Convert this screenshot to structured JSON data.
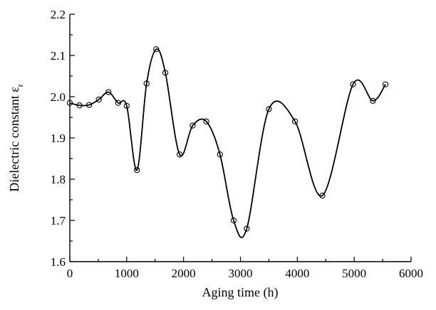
{
  "chart_data": {
    "type": "line",
    "xlabel": "Aging time (h)",
    "ylabel": "Dielectric constant ε",
    "ylabel_subscript": "r",
    "xlim": [
      0,
      6000
    ],
    "ylim": [
      1.6,
      2.2
    ],
    "x_ticks": [
      0,
      1000,
      2000,
      3000,
      4000,
      5000,
      6000
    ],
    "x_tick_labels": [
      "0",
      "1000",
      "2000",
      "3000",
      "4000",
      "5000",
      "6000"
    ],
    "y_ticks": [
      1.6,
      1.7,
      1.8,
      1.9,
      2.0,
      2.1,
      2.2
    ],
    "y_tick_labels": [
      "1.6",
      "1.7",
      "1.8",
      "1.9",
      "2.0",
      "2.1",
      "2.2"
    ],
    "grid": false,
    "series": [
      {
        "marker": "open-circle",
        "line": "smooth",
        "points": [
          {
            "x": 0,
            "y": 1.985
          },
          {
            "x": 170,
            "y": 1.979
          },
          {
            "x": 340,
            "y": 1.98
          },
          {
            "x": 510,
            "y": 1.993
          },
          {
            "x": 680,
            "y": 2.011
          },
          {
            "x": 850,
            "y": 1.985
          },
          {
            "x": 1000,
            "y": 1.978
          },
          {
            "x": 1180,
            "y": 1.822
          },
          {
            "x": 1350,
            "y": 2.032
          },
          {
            "x": 1520,
            "y": 2.115
          },
          {
            "x": 1680,
            "y": 2.058
          },
          {
            "x": 1930,
            "y": 1.86
          },
          {
            "x": 2160,
            "y": 1.93
          },
          {
            "x": 2400,
            "y": 1.94
          },
          {
            "x": 2640,
            "y": 1.86
          },
          {
            "x": 2880,
            "y": 1.7
          },
          {
            "x": 3110,
            "y": 1.68
          },
          {
            "x": 3500,
            "y": 1.97
          },
          {
            "x": 3960,
            "y": 1.94
          },
          {
            "x": 4440,
            "y": 1.76
          },
          {
            "x": 4980,
            "y": 2.03
          },
          {
            "x": 5330,
            "y": 1.99
          },
          {
            "x": 5550,
            "y": 2.03
          }
        ]
      }
    ]
  }
}
